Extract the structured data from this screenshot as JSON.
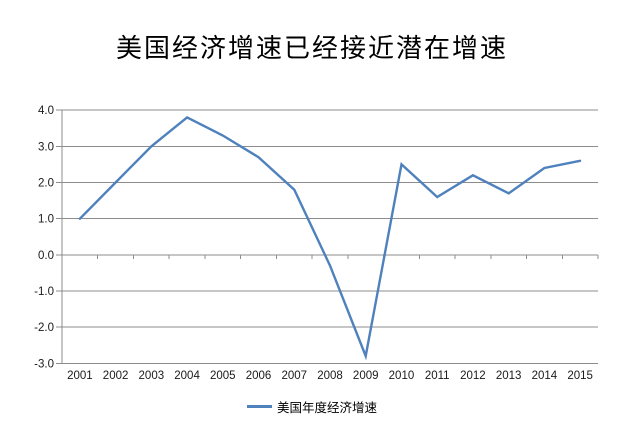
{
  "title": "美国经济增速已经接近潜在增速",
  "legend": {
    "label": "美国年度经济增速"
  },
  "colors": {
    "line": "#4F81BD",
    "grid": "#8C8C8C",
    "axis": "#8C8C8C",
    "tick_label": "#1a1a1a",
    "background": "#FFFFFF"
  },
  "chart_data": {
    "type": "line",
    "title": "美国经济增速已经接近潜在增速",
    "categories": [
      "2001",
      "2002",
      "2003",
      "2004",
      "2005",
      "2006",
      "2007",
      "2008",
      "2009",
      "2010",
      "2011",
      "2012",
      "2013",
      "2014",
      "2015"
    ],
    "series": [
      {
        "name": "美国年度经济增速",
        "values": [
          1.0,
          2.0,
          3.0,
          3.8,
          3.3,
          2.7,
          1.8,
          -0.3,
          -2.8,
          2.5,
          1.6,
          2.2,
          1.7,
          2.4,
          2.6
        ]
      }
    ],
    "xlabel": "",
    "ylabel": "",
    "ylim": [
      -3.0,
      4.0
    ],
    "ytick_step": 1.0,
    "ytick_labels": [
      "-3.0",
      "-2.0",
      "-1.0",
      "0.0",
      "1.0",
      "2.0",
      "3.0",
      "4.0"
    ],
    "grid": true,
    "legend_position": "bottom",
    "category_axis_at_zero": true,
    "smooth": false
  }
}
